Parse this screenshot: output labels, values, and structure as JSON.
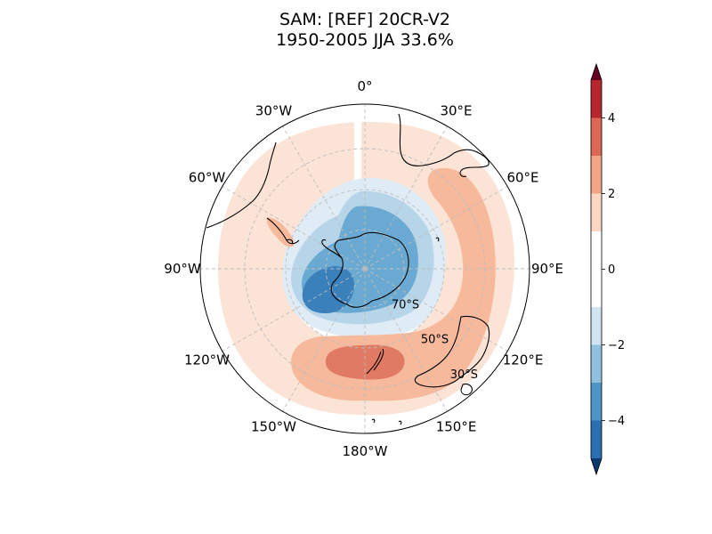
{
  "chart_data": {
    "type": "heatmap",
    "projection": "south-polar-stereographic",
    "title_line1": "SAM: [REF] 20CR-V2",
    "title_line2": "1950-2005 JJA 33.6%",
    "longitude_labels": [
      {
        "label": "0°",
        "lon": 0
      },
      {
        "label": "30°E",
        "lon": 30
      },
      {
        "label": "60°E",
        "lon": 60
      },
      {
        "label": "90°E",
        "lon": 90
      },
      {
        "label": "120°E",
        "lon": 120
      },
      {
        "label": "150°E",
        "lon": 150
      },
      {
        "label": "180°W",
        "lon": 180
      },
      {
        "label": "150°W",
        "lon": -150
      },
      {
        "label": "120°W",
        "lon": -120
      },
      {
        "label": "90°W",
        "lon": -90
      },
      {
        "label": "60°W",
        "lon": -60
      },
      {
        "label": "30°W",
        "lon": -30
      }
    ],
    "latitude_labels": [
      {
        "label": "70°S",
        "lat": -70
      },
      {
        "label": "50°S",
        "lat": -50
      },
      {
        "label": "30°S",
        "lat": -30
      }
    ],
    "lat_range": [
      -90,
      -20
    ],
    "gridlines": true,
    "colorbar": {
      "orientation": "vertical",
      "placement": "right",
      "levels": [
        -5,
        -4,
        -3,
        -2,
        -1,
        1,
        2,
        3,
        4,
        5
      ],
      "colors": [
        "#2c6fb0",
        "#4d95c5",
        "#8fc1de",
        "#cfe3f0",
        "#ffffff",
        "#fbd6c2",
        "#f2a586",
        "#da6854",
        "#b5262f"
      ],
      "under_color": "#0a3a6e",
      "over_color": "#67001f",
      "tick_labels": [
        "−4",
        "−2",
        "0",
        "2",
        "4"
      ],
      "tick_values": [
        -4,
        -2,
        0,
        2,
        4
      ]
    },
    "field_colors": {
      "light_red": "#fbe3d6",
      "mid_red": "#f6b99c",
      "dark_red": "#e07a63",
      "light_blue": "#e0ecf5",
      "mid_blue": "#b7d5e8",
      "blue": "#6aaad2",
      "dark_blue": "#3a80bb"
    }
  }
}
